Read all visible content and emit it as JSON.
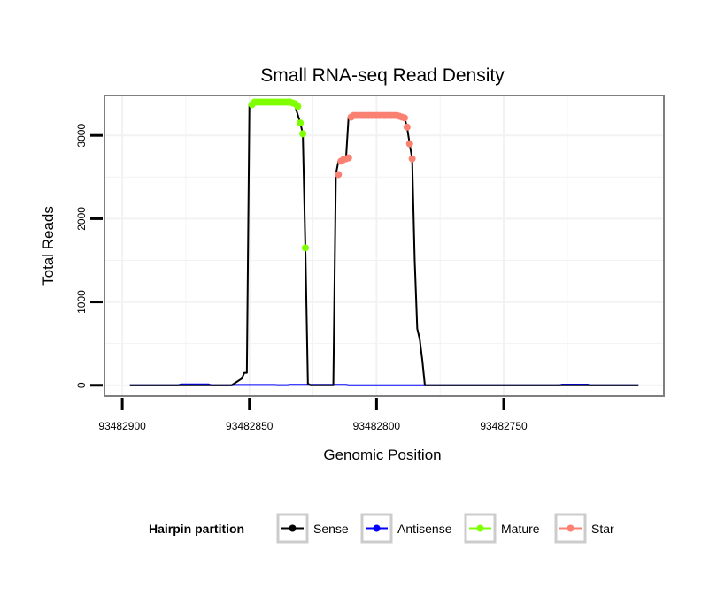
{
  "chart_data": {
    "type": "line",
    "title": "Small RNA-seq Read Density",
    "xlabel": "Genomic Position",
    "ylabel": "Total Reads",
    "x_reversed": true,
    "xlim": [
      93482907,
      93482687
    ],
    "ylim": [
      -130,
      3480
    ],
    "x_ticks": [
      93482900,
      93482850,
      93482800,
      93482750
    ],
    "x_tick_labels": [
      "93482900",
      "93482850",
      "93482800",
      "93482750"
    ],
    "y_ticks": [
      0,
      1000,
      2000,
      3000
    ],
    "y_tick_labels": [
      "0",
      "1000",
      "2000",
      "3000"
    ],
    "grid": true,
    "legend": {
      "title": "Hairpin partition",
      "placement": "bottom",
      "entries": [
        {
          "name": "Sense",
          "color": "#000000"
        },
        {
          "name": "Antisense",
          "color": "#0000ff"
        },
        {
          "name": "Mature",
          "color": "#7fff00"
        },
        {
          "name": "Star",
          "color": "#fa8072"
        }
      ]
    },
    "series": [
      {
        "name": "Sense",
        "color": "#000000",
        "style": "line",
        "x": [
          93482897,
          93482857,
          93482853,
          93482852,
          93482851,
          93482850,
          93482849,
          93482848,
          93482847,
          93482846,
          93482845,
          93482844,
          93482843,
          93482842,
          93482841,
          93482840,
          93482839,
          93482838,
          93482837,
          93482836,
          93482835,
          93482834,
          93482833,
          93482832,
          93482831,
          93482830,
          93482829,
          93482828,
          93482827,
          93482826,
          93482825,
          93482824,
          93482823,
          93482822,
          93482821,
          93482820,
          93482819,
          93482818,
          93482817,
          93482816,
          93482815,
          93482814,
          93482813,
          93482812,
          93482811,
          93482810,
          93482809,
          93482808,
          93482807,
          93482806,
          93482805,
          93482804,
          93482803,
          93482802,
          93482801,
          93482800,
          93482799,
          93482798,
          93482797,
          93482796,
          93482795,
          93482794,
          93482793,
          93482792,
          93482791,
          93482790,
          93482789,
          93482788,
          93482787,
          93482786,
          93482785,
          93482784,
          93482783,
          93482782,
          93482781,
          93482780,
          93482779,
          93482697
        ],
        "y": [
          0,
          0,
          80,
          150,
          150,
          3370,
          3400,
          3400,
          3400,
          3400,
          3400,
          3400,
          3400,
          3400,
          3400,
          3400,
          3400,
          3400,
          3400,
          3400,
          3400,
          3390,
          3380,
          3350,
          3250,
          3150,
          3020,
          1650,
          20,
          0,
          0,
          0,
          0,
          0,
          0,
          0,
          0,
          0,
          0,
          2530,
          2690,
          2710,
          2720,
          2730,
          3220,
          3240,
          3240,
          3240,
          3240,
          3240,
          3240,
          3240,
          3240,
          3240,
          3240,
          3240,
          3240,
          3240,
          3240,
          3240,
          3240,
          3240,
          3240,
          3240,
          3230,
          3220,
          3210,
          3100,
          2900,
          2720,
          1500,
          680,
          550,
          300,
          0,
          0,
          0,
          0
        ]
      },
      {
        "name": "Antisense",
        "color": "#0000ff",
        "style": "line",
        "x": [
          93482897,
          93482878,
          93482877,
          93482866,
          93482865,
          93482857,
          93482856,
          93482840,
          93482839,
          93482835,
          93482834,
          93482812,
          93482811,
          93482728,
          93482727,
          93482717,
          93482716,
          93482697
        ],
        "y": [
          0,
          0,
          10,
          10,
          0,
          0,
          4,
          4,
          2,
          2,
          5,
          5,
          0,
          0,
          8,
          8,
          0,
          0
        ]
      },
      {
        "name": "Mature",
        "color": "#7fff00",
        "style": "points",
        "x": [
          93482849,
          93482848,
          93482847,
          93482846,
          93482845,
          93482844,
          93482843,
          93482842,
          93482841,
          93482840,
          93482839,
          93482838,
          93482837,
          93482836,
          93482835,
          93482834,
          93482833,
          93482832,
          93482831,
          93482830,
          93482829,
          93482828
        ],
        "y": [
          3370,
          3400,
          3400,
          3400,
          3400,
          3400,
          3400,
          3400,
          3400,
          3400,
          3400,
          3400,
          3400,
          3400,
          3400,
          3400,
          3390,
          3380,
          3350,
          3150,
          3020,
          1650
        ]
      },
      {
        "name": "Star",
        "color": "#fa8072",
        "style": "points",
        "x": [
          93482815,
          93482814,
          93482813,
          93482812,
          93482811,
          93482810,
          93482809,
          93482808,
          93482807,
          93482806,
          93482805,
          93482804,
          93482803,
          93482802,
          93482801,
          93482800,
          93482799,
          93482798,
          93482797,
          93482796,
          93482795,
          93482794,
          93482793,
          93482792,
          93482791,
          93482790,
          93482789,
          93482788,
          93482787,
          93482786
        ],
        "y": [
          2530,
          2690,
          2710,
          2720,
          2730,
          3220,
          3240,
          3240,
          3240,
          3240,
          3240,
          3240,
          3240,
          3240,
          3240,
          3240,
          3240,
          3240,
          3240,
          3240,
          3240,
          3240,
          3240,
          3240,
          3230,
          3220,
          3210,
          3100,
          2900,
          2720
        ]
      }
    ]
  }
}
